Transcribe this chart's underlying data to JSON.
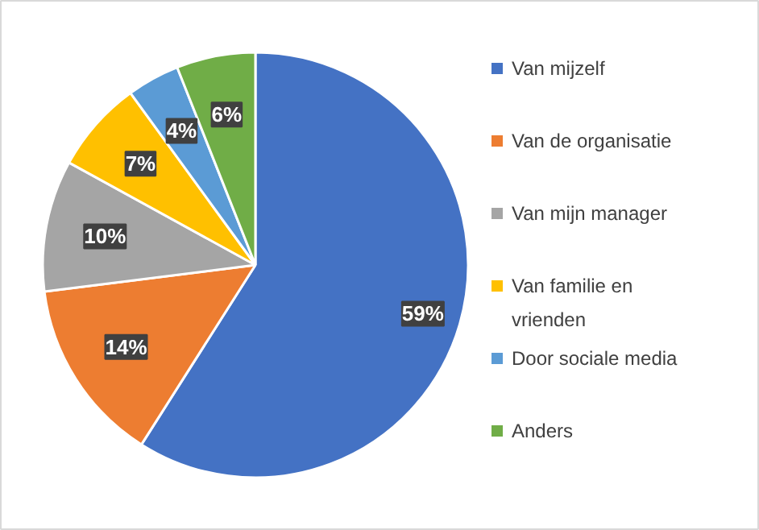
{
  "chart_data": {
    "type": "pie",
    "categories": [
      "Van mijzelf",
      "Van de organisatie",
      "Van mijn manager",
      "Van familie en vrienden",
      "Door sociale media",
      "Anders"
    ],
    "values": [
      59,
      14,
      10,
      7,
      4,
      6
    ],
    "colors": [
      "#4472c4",
      "#ed7d31",
      "#a5a5a5",
      "#ffc000",
      "#5b9bd5",
      "#70ad47"
    ],
    "value_labels": [
      "59%",
      "14%",
      "10%",
      "7%",
      "4%",
      "6%"
    ],
    "legend": "right"
  }
}
